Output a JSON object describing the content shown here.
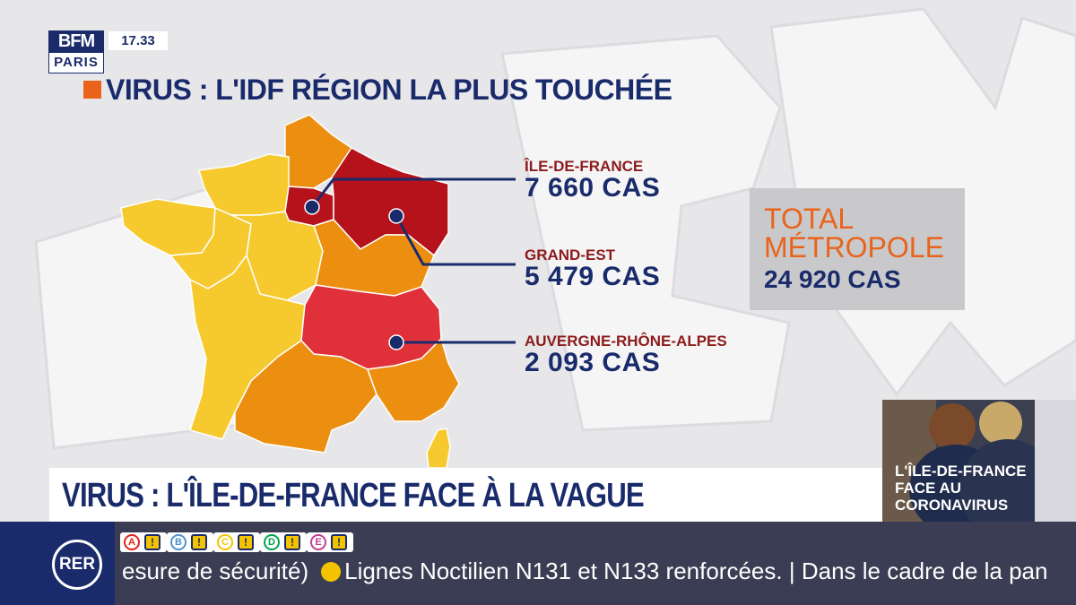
{
  "channel": {
    "logo_top": "BFM",
    "logo_bottom": "PARIS",
    "time": "17.33"
  },
  "headline": "VIRUS : L'IDF RÉGION LA PLUS TOUCHÉE",
  "callouts": [
    {
      "region": "ÎLE-DE-FRANCE",
      "cases": "7 660 CAS"
    },
    {
      "region": "GRAND-EST",
      "cases": "5 479 CAS"
    },
    {
      "region": "AUVERGNE-RHÔNE-ALPES",
      "cases": "2 093 CAS"
    }
  ],
  "total": {
    "line1": "TOTAL",
    "line2": "MÉTROPOLE",
    "value": "24 920 CAS"
  },
  "thumbnail": {
    "line1": "L'ÎLE-DE-FRANCE",
    "line2": "FACE AU",
    "line3": "CORONAVIRUS"
  },
  "lower_third": "VIRUS : L'ÎLE-DE-FRANCE FACE À LA VAGUE",
  "ticker": {
    "brand": "RER",
    "lines": [
      {
        "letter": "A",
        "color": "#e2231a",
        "alert": "!"
      },
      {
        "letter": "B",
        "color": "#5291ce",
        "alert": "!"
      },
      {
        "letter": "C",
        "color": "#f4c300",
        "alert": "!"
      },
      {
        "letter": "D",
        "color": "#00a651",
        "alert": "!"
      },
      {
        "letter": "E",
        "color": "#c04191",
        "alert": "!"
      }
    ],
    "text_before": "esure de sécurité)",
    "text_main": "Lignes Noctilien N131 et N133 renforcées.",
    "text_after": "| Dans le cadre de la pan"
  },
  "colors": {
    "navy": "#1a2b6b",
    "orange": "#e8641b",
    "dark_red": "#b5121b",
    "red": "#e0313b",
    "amber": "#ec8f10",
    "yellow": "#f6c92f"
  }
}
